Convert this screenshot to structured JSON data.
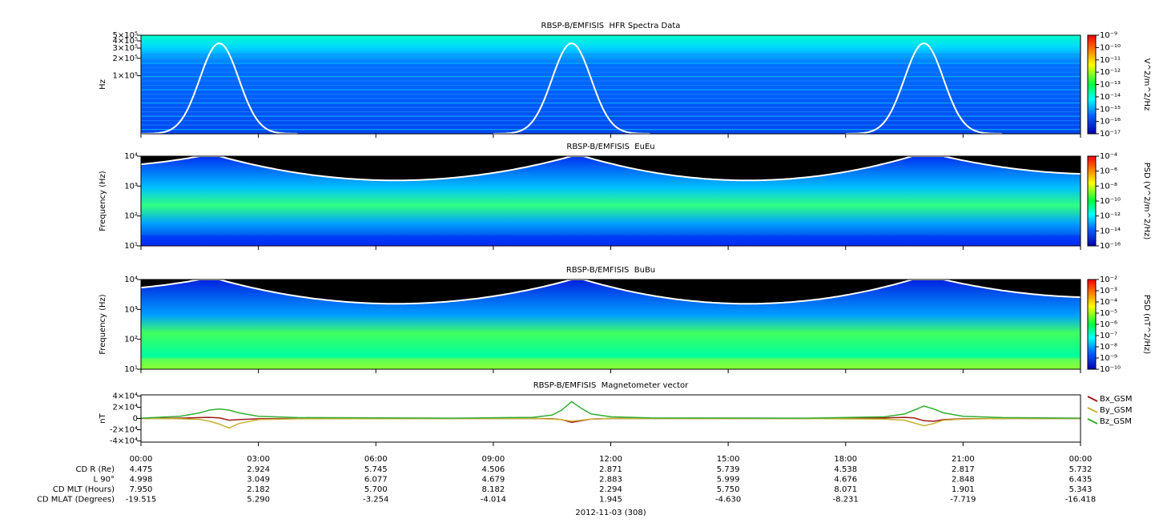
{
  "chart_data": [
    {
      "type": "spectrogram",
      "title": "RBSP-B/EMFISIS  HFR Spectra Data",
      "y_label": "Hz",
      "log_y": true,
      "ylim": [
        10000,
        500000
      ],
      "yticks": [
        {
          "value": 500000,
          "label": "5×10⁵"
        },
        {
          "value": 400000,
          "label": "4×10⁵"
        },
        {
          "value": 300000,
          "label": "3×10⁵"
        },
        {
          "value": 200000,
          "label": "2×10⁵"
        },
        {
          "value": 100000,
          "label": "1×10⁵"
        }
      ],
      "xlim": [
        0,
        24
      ],
      "xticks": [
        {
          "value": 0,
          "label": "00:00"
        },
        {
          "value": 3,
          "label": "03:00"
        },
        {
          "value": 6,
          "label": "06:00"
        },
        {
          "value": 9,
          "label": "09:00"
        },
        {
          "value": 12,
          "label": "12:00"
        },
        {
          "value": 15,
          "label": "15:00"
        },
        {
          "value": 18,
          "label": "18:00"
        },
        {
          "value": 21,
          "label": "21:00"
        },
        {
          "value": 24,
          "label": "00:00"
        }
      ],
      "colorbar": {
        "label": "V^2/m^2/Hz",
        "log": true,
        "ticks": [
          {
            "value": 1e-09,
            "label": "10⁻⁹"
          },
          {
            "value": 1e-10,
            "label": "10⁻¹⁰"
          },
          {
            "value": 1e-11,
            "label": "10⁻¹¹"
          },
          {
            "value": 1e-12,
            "label": "10⁻¹²"
          },
          {
            "value": 1e-13,
            "label": "10⁻¹³"
          },
          {
            "value": 1e-14,
            "label": "10⁻¹⁴"
          },
          {
            "value": 1e-15,
            "label": "10⁻¹⁵"
          },
          {
            "value": 1e-16,
            "label": "10⁻¹⁶"
          },
          {
            "value": 1e-17,
            "label": "10⁻¹⁷"
          }
        ]
      }
    },
    {
      "type": "spectrogram",
      "title": "RBSP-B/EMFISIS  EuEu",
      "y_label": "Frequency (Hz)",
      "log_y": true,
      "ylim": [
        10,
        10000
      ],
      "yticks": [
        {
          "value": 10,
          "label": "10¹"
        },
        {
          "value": 100,
          "label": "10²"
        },
        {
          "value": 1000,
          "label": "10³"
        },
        {
          "value": 10000,
          "label": "10⁴"
        }
      ],
      "xlim": [
        0,
        24
      ],
      "xticks": [
        {
          "value": 0,
          "label": "00:00"
        },
        {
          "value": 3,
          "label": "03:00"
        },
        {
          "value": 6,
          "label": "06:00"
        },
        {
          "value": 9,
          "label": "09:00"
        },
        {
          "value": 12,
          "label": "12:00"
        },
        {
          "value": 15,
          "label": "15:00"
        },
        {
          "value": 18,
          "label": "18:00"
        },
        {
          "value": 21,
          "label": "21:00"
        },
        {
          "value": 24,
          "label": "00:00"
        }
      ],
      "colorbar": {
        "label": "PSD (V^2/m^2/Hz)",
        "log": true,
        "ticks": [
          {
            "value": 0.0001,
            "label": "10⁻⁴"
          },
          {
            "value": 1e-06,
            "label": "10⁻⁶"
          },
          {
            "value": 1e-08,
            "label": "10⁻⁸"
          },
          {
            "value": 1e-10,
            "label": "10⁻¹⁰"
          },
          {
            "value": 1e-12,
            "label": "10⁻¹²"
          },
          {
            "value": 1e-14,
            "label": "10⁻¹⁴"
          },
          {
            "value": 1e-16,
            "label": "10⁻¹⁶"
          }
        ]
      }
    },
    {
      "type": "spectrogram",
      "title": "RBSP-B/EMFISIS  BuBu",
      "y_label": "Frequency (Hz)",
      "log_y": true,
      "ylim": [
        10,
        10000
      ],
      "yticks": [
        {
          "value": 10,
          "label": "10¹"
        },
        {
          "value": 100,
          "label": "10²"
        },
        {
          "value": 1000,
          "label": "10³"
        },
        {
          "value": 10000,
          "label": "10⁴"
        }
      ],
      "xlim": [
        0,
        24
      ],
      "xticks": [
        {
          "value": 0,
          "label": "00:00"
        },
        {
          "value": 3,
          "label": "03:00"
        },
        {
          "value": 6,
          "label": "06:00"
        },
        {
          "value": 9,
          "label": "09:00"
        },
        {
          "value": 12,
          "label": "12:00"
        },
        {
          "value": 15,
          "label": "15:00"
        },
        {
          "value": 18,
          "label": "18:00"
        },
        {
          "value": 21,
          "label": "21:00"
        },
        {
          "value": 24,
          "label": "00:00"
        }
      ],
      "colorbar": {
        "label": "PSD (nT^2/Hz)",
        "log": true,
        "ticks": [
          {
            "value": 0.01,
            "label": "10⁻²"
          },
          {
            "value": 0.001,
            "label": "10⁻³"
          },
          {
            "value": 0.0001,
            "label": "10⁻⁴"
          },
          {
            "value": 1e-05,
            "label": "10⁻⁵"
          },
          {
            "value": 1e-06,
            "label": "10⁻⁶"
          },
          {
            "value": 1e-07,
            "label": "10⁻⁷"
          },
          {
            "value": 1e-08,
            "label": "10⁻⁸"
          },
          {
            "value": 1e-09,
            "label": "10⁻⁹"
          },
          {
            "value": 1e-10,
            "label": "10⁻¹⁰"
          }
        ]
      }
    },
    {
      "type": "line",
      "title": "RBSP-B/EMFISIS  Magnetometer vector",
      "y_label": "nT",
      "ylim": [
        -42000,
        42000
      ],
      "yticks": [
        {
          "value": 40000,
          "label": "4×10⁴"
        },
        {
          "value": 20000,
          "label": "2×10⁴"
        },
        0,
        {
          "value": -20000,
          "label": "-2×10⁴"
        },
        {
          "value": -40000,
          "label": "-4×10⁴"
        }
      ],
      "xlim": [
        0,
        24
      ],
      "xticks": [
        {
          "value": 0,
          "label": "00:00"
        },
        {
          "value": 3,
          "label": "03:00"
        },
        {
          "value": 6,
          "label": "06:00"
        },
        {
          "value": 9,
          "label": "09:00"
        },
        {
          "value": 12,
          "label": "12:00"
        },
        {
          "value": 15,
          "label": "15:00"
        },
        {
          "value": 18,
          "label": "18:00"
        },
        {
          "value": 21,
          "label": "21:00"
        },
        {
          "value": 24,
          "label": "00:00"
        }
      ],
      "x": [
        0,
        1,
        1.5,
        1.75,
        2,
        2.25,
        2.5,
        3,
        4,
        8,
        10,
        10.5,
        10.75,
        11,
        11.25,
        11.5,
        12,
        13,
        17,
        19,
        19.5,
        19.75,
        20,
        20.25,
        20.5,
        21,
        22,
        24
      ],
      "series": [
        {
          "name": "Bx_GSM",
          "color": "#a01818",
          "values": [
            0,
            500,
            1500,
            2000,
            1000,
            -3000,
            -2000,
            -500,
            0,
            0,
            0,
            -500,
            -2000,
            -7000,
            -4000,
            -1000,
            0,
            0,
            0,
            1000,
            2000,
            1000,
            -4000,
            -5000,
            -2000,
            -500,
            0,
            0
          ]
        },
        {
          "name": "By_GSM",
          "color": "#c8b030",
          "values": [
            0,
            -500,
            -1500,
            -5000,
            -10000,
            -17000,
            -9000,
            -2000,
            -500,
            0,
            0,
            -1000,
            -2000,
            -5000,
            -3000,
            -1000,
            0,
            0,
            0,
            -1000,
            -3000,
            -8000,
            -13000,
            -9000,
            -3000,
            -1000,
            0,
            0
          ]
        },
        {
          "name": "Bz_GSM",
          "color": "#30b030",
          "values": [
            500,
            4000,
            10000,
            15000,
            17000,
            15000,
            10000,
            4000,
            1500,
            500,
            2000,
            6000,
            15000,
            30000,
            18000,
            8000,
            3000,
            1000,
            500,
            3000,
            8000,
            15000,
            22000,
            17000,
            10000,
            4000,
            1500,
            500
          ]
        }
      ]
    }
  ],
  "ephemeris": {
    "rows": [
      {
        "label": "CD R (Re)",
        "values": [
          "4.475",
          "2.924",
          "5.745",
          "4.506",
          "2.871",
          "5.739",
          "4.538",
          "2.817",
          "5.732"
        ]
      },
      {
        "label": "L 90°",
        "values": [
          "4.998",
          "3.049",
          "6.077",
          "4.679",
          "2.883",
          "5.999",
          "4.676",
          "2.848",
          "6.435"
        ]
      },
      {
        "label": "CD MLT (Hours)",
        "values": [
          "7.950",
          "2.182",
          "5.700",
          "8.182",
          "2.294",
          "5.750",
          "8.071",
          "1.901",
          "5.343"
        ]
      },
      {
        "label": "CD MLAT (Degrees)",
        "values": [
          "-19.515",
          "5.290",
          "-3.254",
          "-4.014",
          "1.945",
          "-4.630",
          "-8.231",
          "-7.719",
          "-16.418"
        ]
      }
    ],
    "date": "2012-11-03 (308)"
  }
}
